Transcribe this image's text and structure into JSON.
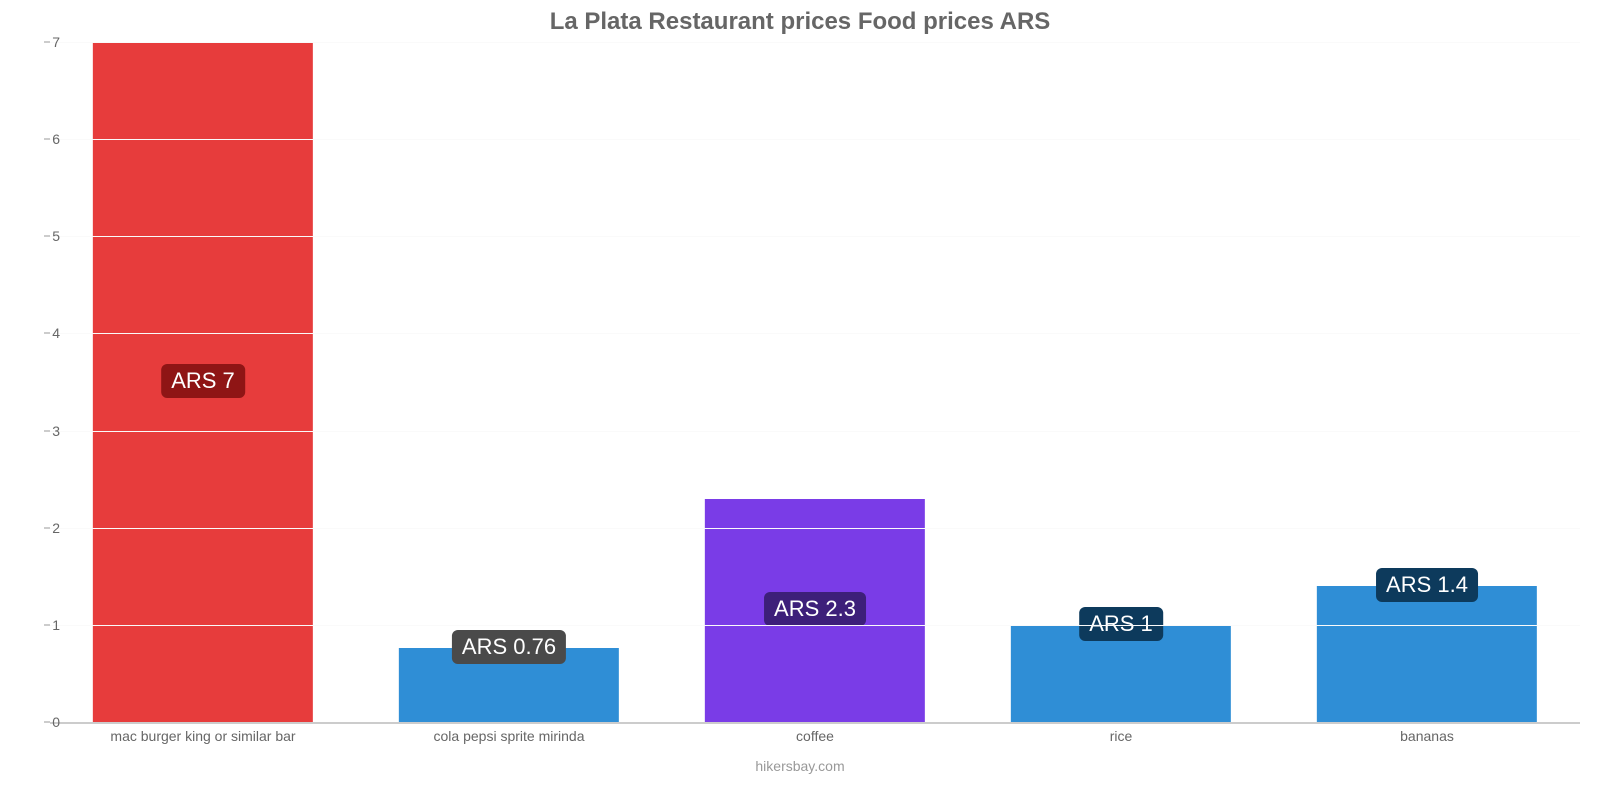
{
  "chart": {
    "type": "bar",
    "title": "La Plata Restaurant prices Food prices ARS",
    "title_color": "#666666",
    "title_fontsize": 24,
    "background_color": "#ffffff",
    "grid_color": "#fafafa",
    "baseline_color": "#cccccc",
    "axis_text_color": "#666666",
    "axis_fontsize": 14,
    "ylim": [
      0,
      7
    ],
    "ytick_step": 1,
    "yticks": [
      "0",
      "1",
      "2",
      "3",
      "4",
      "5",
      "6",
      "7"
    ],
    "bar_width_pct": 72,
    "value_label_fontsize": 22,
    "categories": [
      "mac burger king or similar bar",
      "cola pepsi sprite mirinda",
      "coffee",
      "rice",
      "bananas"
    ],
    "values": [
      7,
      0.76,
      2.3,
      1,
      1.4
    ],
    "value_labels": [
      "ARS 7",
      "ARS 0.76",
      "ARS 2.3",
      "ARS 1",
      "ARS 1.4"
    ],
    "bar_colors": [
      "#e73c3c",
      "#2f8ed6",
      "#7a3ce7",
      "#2f8ed6",
      "#2f8ed6"
    ],
    "label_bg_colors": [
      "#8f1515",
      "#4a4a4a",
      "#3d1f7a",
      "#0d3a5c",
      "#0d3a5c"
    ],
    "label_positions": [
      "mid",
      "above",
      "mid",
      "above",
      "above"
    ],
    "credit": "hikersbay.com",
    "credit_color": "#999999"
  }
}
